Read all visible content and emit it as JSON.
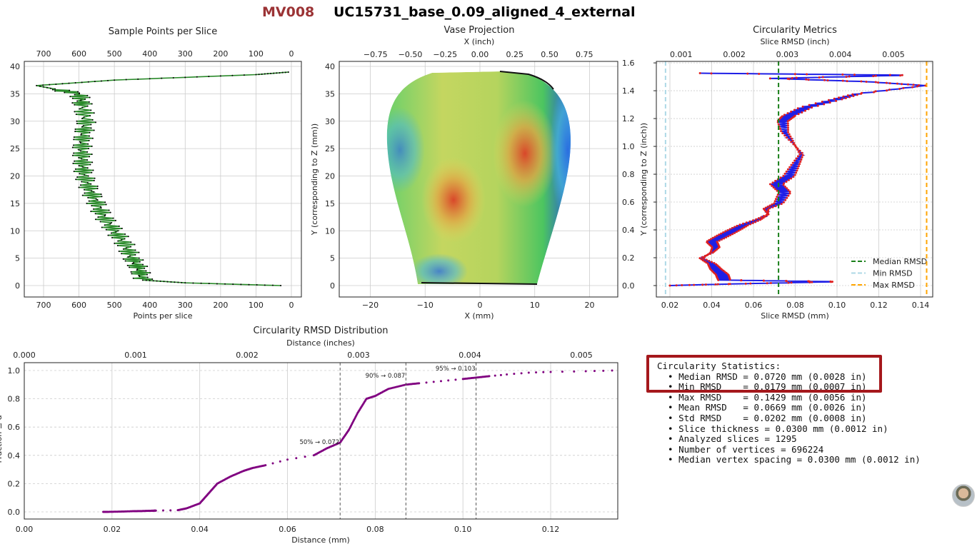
{
  "header": {
    "label_id": "MV008",
    "title": "UC15731_base_0.09_aligned_4_external"
  },
  "colors": {
    "label_id": "#9b3335",
    "points_line": "#2a8a2a",
    "rmsd_line": "#1f1fe6",
    "rmsd_points": "#e02020",
    "median": "#1a7f1a",
    "min": "#add8e6",
    "max": "#ffa500",
    "cdf": "#800080",
    "highlight": "#a5181c"
  },
  "chart_data": [
    {
      "type": "line",
      "title": "Sample Points per Slice",
      "xlabel": "Points per slice",
      "xticks": [
        700,
        600,
        500,
        400,
        300,
        200,
        100,
        0
      ],
      "top_xticks": [
        700,
        600,
        500,
        400,
        300,
        200,
        100,
        0
      ],
      "yticks": [
        0,
        5,
        10,
        15,
        20,
        25,
        30,
        35,
        40
      ],
      "xlim": [
        750,
        0
      ],
      "ylim": [
        -2,
        41
      ],
      "grid": true,
      "x": [
        30,
        300,
        420,
        430,
        450,
        470,
        500,
        530,
        550,
        570,
        585,
        590,
        592,
        588,
        580,
        590,
        600,
        720,
        500,
        100,
        0
      ],
      "y": [
        0,
        0.5,
        1,
        3,
        5,
        7.5,
        10,
        12.5,
        15,
        17.5,
        20,
        22.5,
        25,
        27.5,
        30,
        33,
        35,
        36.5,
        37.5,
        38.5,
        39
      ]
    },
    {
      "type": "image",
      "title": "Vase Projection",
      "xlabel": "X (mm)",
      "top_xlabel": "X (inch)",
      "ylabel": "Y (corresponding to Z (mm))",
      "right_ylabel": "Y (corresponding to Z (inch))",
      "xticks": [
        -20,
        -10,
        0,
        10,
        20
      ],
      "top_xticks": [
        "−0.75",
        "−0.50",
        "−0.25",
        "0.00",
        "0.25",
        "0.50",
        "0.75"
      ],
      "yticks": [
        0,
        5,
        10,
        15,
        20,
        25,
        30,
        35,
        40
      ],
      "right_yticks": [
        "0.0",
        "0.2",
        "0.4",
        "0.6",
        "0.8",
        "1.0",
        "1.2",
        "1.4",
        "1.6"
      ],
      "grid": true
    },
    {
      "type": "line",
      "title": "Circularity Metrics",
      "xlabel": "Slice RMSD (mm)",
      "top_xlabel": "Slice RMSD (inch)",
      "xticks": [
        "0.02",
        "0.04",
        "0.06",
        "0.08",
        "0.10",
        "0.12",
        "0.14"
      ],
      "top_xticks": [
        "0.001",
        "0.002",
        "0.003",
        "0.004",
        "0.005"
      ],
      "xlim": [
        0.012,
        0.149
      ],
      "grid": true,
      "legend": "bottom-right",
      "x": [
        0.02,
        0.05,
        0.1,
        0.046,
        0.045,
        0.042,
        0.04,
        0.035,
        0.04,
        0.042,
        0.04,
        0.045,
        0.05,
        0.055,
        0.062,
        0.067,
        0.066,
        0.072,
        0.075,
        0.071,
        0.077,
        0.08,
        0.083,
        0.079,
        0.075,
        0.074,
        0.077,
        0.085,
        0.1,
        0.11,
        0.142,
        0.115,
        0.07,
        0.134,
        0.02
      ],
      "y": [
        0,
        0.3,
        0.7,
        1,
        2,
        3,
        4,
        5,
        6,
        7,
        8,
        9,
        10,
        11,
        12,
        13,
        14,
        15,
        17,
        18.5,
        20,
        22,
        24,
        26,
        28,
        30,
        31,
        32.5,
        34,
        35,
        36.5,
        37.2,
        37.8,
        38.4,
        38.8
      ],
      "series": [
        {
          "name": "Median RMSD",
          "value": 0.072
        },
        {
          "name": "Min RMSD",
          "value": 0.0179
        },
        {
          "name": "Max RMSD",
          "value": 0.1429
        }
      ]
    },
    {
      "type": "scatter",
      "title": "Circularity RMSD Distribution",
      "xlabel": "Distance (mm)",
      "top_xlabel": "Distance (inches)",
      "ylabel": "Fraction ≤ d",
      "xticks": [
        "0.00",
        "0.02",
        "0.04",
        "0.06",
        "0.08",
        "0.10",
        "0.12"
      ],
      "top_xticks": [
        "0.000",
        "0.001",
        "0.002",
        "0.003",
        "0.004",
        "0.005"
      ],
      "yticks": [
        "0.0",
        "0.2",
        "0.4",
        "0.6",
        "0.8",
        "1.0"
      ],
      "xlim": [
        0,
        0.135
      ],
      "ylim": [
        -0.05,
        1.05
      ],
      "grid": true,
      "x": [
        0.018,
        0.019,
        0.022,
        0.025,
        0.027,
        0.029,
        0.03,
        0.035,
        0.037,
        0.04,
        0.042,
        0.044,
        0.047,
        0.05,
        0.052,
        0.055,
        0.06,
        0.066,
        0.069,
        0.072,
        0.074,
        0.076,
        0.078,
        0.08,
        0.083,
        0.087,
        0.09,
        0.095,
        0.1,
        0.103,
        0.106,
        0.11,
        0.115,
        0.12,
        0.128,
        0.134
      ],
      "y": [
        0,
        0,
        0.002,
        0.005,
        0.006,
        0.008,
        0.009,
        0.012,
        0.025,
        0.06,
        0.13,
        0.2,
        0.25,
        0.29,
        0.31,
        0.33,
        0.37,
        0.4,
        0.45,
        0.49,
        0.58,
        0.7,
        0.8,
        0.82,
        0.87,
        0.9,
        0.91,
        0.925,
        0.94,
        0.95,
        0.96,
        0.972,
        0.985,
        0.99,
        0.995,
        1.0
      ],
      "annotations": [
        {
          "label": "50% → 0.072",
          "x": 0.072
        },
        {
          "label": "90% → 0.087",
          "x": 0.087
        },
        {
          "label": "95% → 0.103",
          "x": 0.103
        }
      ]
    }
  ],
  "stats": {
    "title": "Circularity Statistics:",
    "lines": [
      "  • Median RMSD = 0.0720 mm (0.0028 in)",
      "  • Min RMSD    = 0.0179 mm (0.0007 in)",
      "  • Max RMSD    = 0.1429 mm (0.0056 in)",
      "  • Mean RMSD   = 0.0669 mm (0.0026 in)",
      "  • Std RMSD    = 0.0202 mm (0.0008 in)",
      "  • Slice thickness = 0.0300 mm (0.0012 in)",
      "  • Analyzed slices = 1295",
      "  • Number of vertices = 696224",
      "  • Median vertex spacing = 0.0300 mm (0.0012 in)"
    ]
  }
}
